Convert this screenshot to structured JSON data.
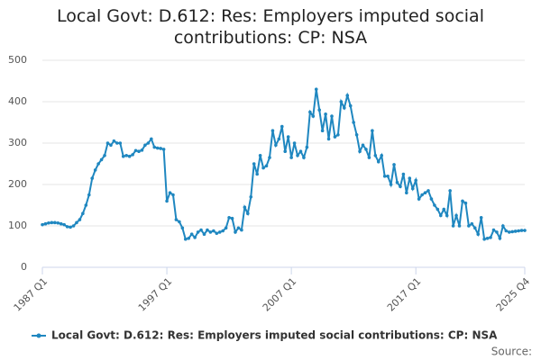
{
  "chart_data": {
    "type": "line",
    "title": "Local Govt: D.612: Res: Employers imputed social contributions: CP: NSA",
    "categories": [
      "1987 Q1",
      null,
      null,
      null,
      null,
      null,
      null,
      null,
      null,
      null,
      null,
      null,
      null,
      null,
      null,
      null,
      null,
      null,
      null,
      null,
      null,
      null,
      null,
      null,
      null,
      null,
      null,
      null,
      null,
      null,
      null,
      null,
      null,
      null,
      null,
      null,
      null,
      null,
      null,
      null,
      "1997 Q1",
      null,
      null,
      null,
      null,
      null,
      null,
      null,
      null,
      null,
      null,
      null,
      null,
      null,
      null,
      null,
      null,
      null,
      null,
      null,
      null,
      null,
      null,
      null,
      null,
      null,
      null,
      null,
      null,
      null,
      null,
      null,
      null,
      null,
      null,
      null,
      null,
      null,
      null,
      null,
      "2007 Q1",
      null,
      null,
      null,
      null,
      null,
      null,
      null,
      null,
      null,
      null,
      null,
      null,
      null,
      null,
      null,
      null,
      null,
      null,
      null,
      null,
      null,
      null,
      null,
      null,
      null,
      null,
      null,
      null,
      null,
      null,
      null,
      null,
      null,
      null,
      null,
      null,
      null,
      null,
      null,
      "2017 Q1",
      null,
      null,
      null,
      null,
      null,
      null,
      null,
      null,
      null,
      null,
      null,
      null,
      null,
      null,
      null,
      null,
      null,
      null,
      null,
      null,
      null,
      null,
      null,
      null,
      null,
      null,
      null,
      null,
      null,
      null,
      null,
      null,
      null,
      null,
      "2025 Q4"
    ],
    "series": [
      {
        "name": "Local Govt: D.612: Res: Employers imputed social contributions: CP: NSA",
        "color": "#1f87c0",
        "values": [
          103,
          105,
          107,
          108,
          108,
          107,
          105,
          103,
          98,
          97,
          100,
          108,
          115,
          130,
          150,
          175,
          215,
          235,
          250,
          260,
          270,
          300,
          295,
          305,
          300,
          300,
          268,
          270,
          268,
          272,
          282,
          280,
          283,
          295,
          300,
          310,
          290,
          288,
          287,
          285,
          160,
          180,
          175,
          115,
          110,
          95,
          68,
          70,
          80,
          72,
          85,
          90,
          80,
          90,
          85,
          88,
          82,
          85,
          88,
          95,
          120,
          118,
          85,
          95,
          90,
          145,
          130,
          170,
          250,
          225,
          270,
          240,
          245,
          265,
          330,
          295,
          310,
          340,
          280,
          315,
          265,
          300,
          270,
          280,
          265,
          290,
          375,
          365,
          430,
          380,
          330,
          370,
          310,
          365,
          315,
          320,
          400,
          385,
          415,
          390,
          350,
          320,
          280,
          295,
          285,
          265,
          330,
          270,
          255,
          270,
          220,
          220,
          200,
          248,
          205,
          195,
          225,
          180,
          215,
          190,
          210,
          165,
          175,
          180,
          185,
          165,
          150,
          140,
          125,
          140,
          125,
          185,
          100,
          125,
          100,
          160,
          155,
          100,
          105,
          95,
          80,
          120,
          68,
          70,
          72,
          90,
          85,
          70,
          100,
          88,
          85,
          86,
          87,
          88,
          89,
          89
        ]
      }
    ],
    "ylim": [
      0,
      500
    ],
    "yticks": [
      0,
      100,
      200,
      300,
      400,
      500
    ],
    "grid": true,
    "source": "Source:"
  }
}
